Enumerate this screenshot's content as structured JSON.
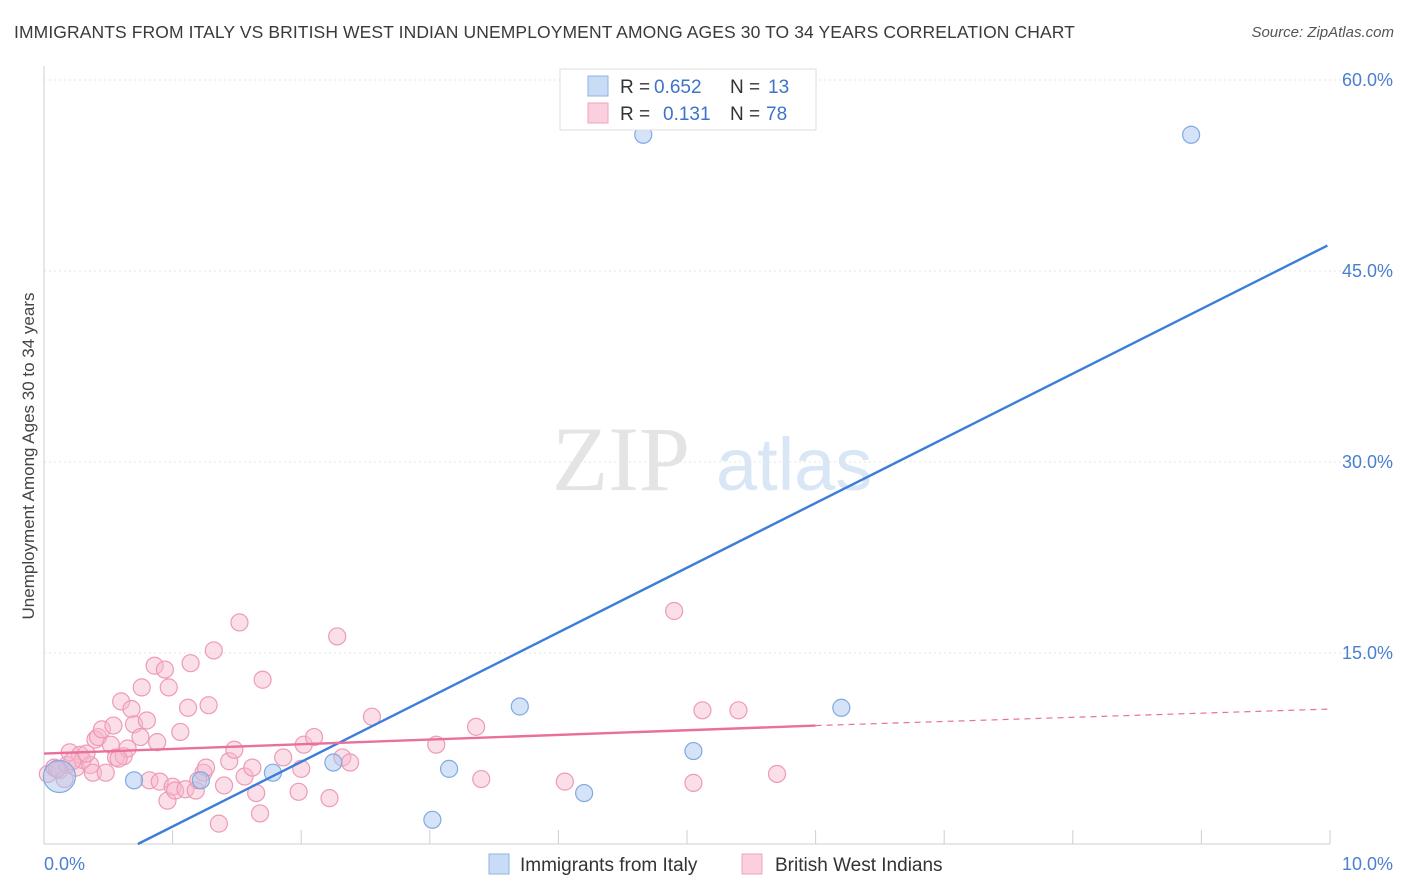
{
  "title": "IMMIGRANTS FROM ITALY VS BRITISH WEST INDIAN UNEMPLOYMENT AMONG AGES 30 TO 34 YEARS CORRELATION CHART",
  "source": "Source: ZipAtlas.com",
  "watermark": {
    "zip": "ZIP",
    "atlas": "atlas"
  },
  "chart_data": {
    "type": "scatter",
    "title": "IMMIGRANTS FROM ITALY VS BRITISH WEST INDIAN UNEMPLOYMENT AMONG AGES 30 TO 34 YEARS CORRELATION CHART",
    "ylabel": "Unemployment Among Ages 30 to 34 years",
    "xlabel": "",
    "xlim": [
      0,
      10
    ],
    "ylim": [
      0,
      60
    ],
    "x_tick_labels": [
      {
        "value": 0,
        "label": "0.0%"
      },
      {
        "value": 10,
        "label": "10.0%"
      }
    ],
    "y_tick_labels": [
      {
        "value": 15,
        "label": "15.0%"
      },
      {
        "value": 30,
        "label": "30.0%"
      },
      {
        "value": 45,
        "label": "45.0%"
      },
      {
        "value": 60,
        "label": "60.0%"
      }
    ],
    "legend": [
      {
        "series": "Immigrants from Italy",
        "r_label": "R =",
        "r": "0.652",
        "n_label": "N =",
        "n": "13",
        "color": "#a9c8f0",
        "line_color": "#3b7dd8"
      },
      {
        "series": "British West Indians",
        "r_label": "R =",
        "r": "0.131",
        "n_label": "N =",
        "n": "78",
        "color": "#f6b8cc",
        "line_color": "#e8709a"
      }
    ],
    "series": [
      {
        "name": "Immigrants from Italy",
        "color": "#a9c8f0",
        "trend": {
          "x1": 0.73,
          "y1": 0.0,
          "x2": 9.98,
          "y2": 47.0
        },
        "points": [
          {
            "x": 0.12,
            "y": 5.3,
            "big": true
          },
          {
            "x": 0.7,
            "y": 5.0
          },
          {
            "x": 1.22,
            "y": 5.0
          },
          {
            "x": 1.78,
            "y": 5.6
          },
          {
            "x": 2.25,
            "y": 6.4
          },
          {
            "x": 3.02,
            "y": 1.9
          },
          {
            "x": 3.15,
            "y": 5.9
          },
          {
            "x": 3.7,
            "y": 10.8
          },
          {
            "x": 4.2,
            "y": 4.0
          },
          {
            "x": 4.66,
            "y": 55.7
          },
          {
            "x": 5.05,
            "y": 7.3
          },
          {
            "x": 6.2,
            "y": 10.7
          },
          {
            "x": 8.92,
            "y": 55.7
          }
        ]
      },
      {
        "name": "British West Indians",
        "color": "#f6b8cc",
        "trend": {
          "x1": 0.0,
          "y1": 7.1,
          "x2": 6.0,
          "y2": 9.3,
          "dash_x2": 10.0,
          "dash_y2": 10.6
        },
        "points": [
          {
            "x": 0.03,
            "y": 5.5
          },
          {
            "x": 0.08,
            "y": 6.0
          },
          {
            "x": 0.12,
            "y": 5.8
          },
          {
            "x": 0.18,
            "y": 6.2
          },
          {
            "x": 0.16,
            "y": 5.1
          },
          {
            "x": 0.2,
            "y": 7.2
          },
          {
            "x": 0.25,
            "y": 6.0
          },
          {
            "x": 0.28,
            "y": 7.0
          },
          {
            "x": 0.3,
            "y": 6.6
          },
          {
            "x": 0.36,
            "y": 6.2
          },
          {
            "x": 0.38,
            "y": 5.6
          },
          {
            "x": 0.4,
            "y": 8.2
          },
          {
            "x": 0.42,
            "y": 8.4
          },
          {
            "x": 0.45,
            "y": 9.0
          },
          {
            "x": 0.48,
            "y": 5.6
          },
          {
            "x": 0.52,
            "y": 7.8
          },
          {
            "x": 0.54,
            "y": 9.3
          },
          {
            "x": 0.56,
            "y": 6.8
          },
          {
            "x": 0.6,
            "y": 11.2
          },
          {
            "x": 0.62,
            "y": 6.9
          },
          {
            "x": 0.65,
            "y": 7.5
          },
          {
            "x": 0.68,
            "y": 10.6
          },
          {
            "x": 0.7,
            "y": 9.4
          },
          {
            "x": 0.75,
            "y": 8.4
          },
          {
            "x": 0.76,
            "y": 12.3
          },
          {
            "x": 0.8,
            "y": 9.7
          },
          {
            "x": 0.82,
            "y": 5.0
          },
          {
            "x": 0.86,
            "y": 14.0
          },
          {
            "x": 0.88,
            "y": 8.0
          },
          {
            "x": 0.9,
            "y": 4.9
          },
          {
            "x": 0.94,
            "y": 13.7
          },
          {
            "x": 0.96,
            "y": 3.4
          },
          {
            "x": 0.97,
            "y": 12.3
          },
          {
            "x": 1.0,
            "y": 4.5
          },
          {
            "x": 1.02,
            "y": 4.2
          },
          {
            "x": 1.06,
            "y": 8.8
          },
          {
            "x": 1.1,
            "y": 4.3
          },
          {
            "x": 1.12,
            "y": 10.7
          },
          {
            "x": 1.14,
            "y": 14.2
          },
          {
            "x": 1.18,
            "y": 4.2
          },
          {
            "x": 1.24,
            "y": 5.6
          },
          {
            "x": 1.26,
            "y": 6.0
          },
          {
            "x": 1.28,
            "y": 10.9
          },
          {
            "x": 1.32,
            "y": 15.2
          },
          {
            "x": 1.36,
            "y": 1.6
          },
          {
            "x": 1.4,
            "y": 4.6
          },
          {
            "x": 1.44,
            "y": 6.5
          },
          {
            "x": 1.48,
            "y": 7.4
          },
          {
            "x": 1.52,
            "y": 17.4
          },
          {
            "x": 1.56,
            "y": 5.3
          },
          {
            "x": 1.62,
            "y": 6.0
          },
          {
            "x": 1.65,
            "y": 4.0
          },
          {
            "x": 1.68,
            "y": 2.4
          },
          {
            "x": 1.7,
            "y": 12.9
          },
          {
            "x": 1.86,
            "y": 6.8
          },
          {
            "x": 1.98,
            "y": 4.1
          },
          {
            "x": 2.02,
            "y": 7.8
          },
          {
            "x": 2.1,
            "y": 8.4
          },
          {
            "x": 2.22,
            "y": 3.6
          },
          {
            "x": 2.28,
            "y": 16.3
          },
          {
            "x": 2.32,
            "y": 6.8
          },
          {
            "x": 2.38,
            "y": 6.4
          },
          {
            "x": 2.55,
            "y": 10.0
          },
          {
            "x": 3.05,
            "y": 7.8
          },
          {
            "x": 3.36,
            "y": 9.2
          },
          {
            "x": 3.4,
            "y": 5.1
          },
          {
            "x": 4.05,
            "y": 4.9
          },
          {
            "x": 4.9,
            "y": 18.3
          },
          {
            "x": 5.05,
            "y": 4.8
          },
          {
            "x": 5.12,
            "y": 10.5
          },
          {
            "x": 5.4,
            "y": 10.5
          },
          {
            "x": 5.7,
            "y": 5.5
          },
          {
            "x": 0.1,
            "y": 5.9
          },
          {
            "x": 0.22,
            "y": 6.5
          },
          {
            "x": 0.33,
            "y": 7.1
          },
          {
            "x": 0.58,
            "y": 6.7
          },
          {
            "x": 1.2,
            "y": 5.0
          },
          {
            "x": 2.0,
            "y": 5.9
          }
        ]
      }
    ]
  }
}
